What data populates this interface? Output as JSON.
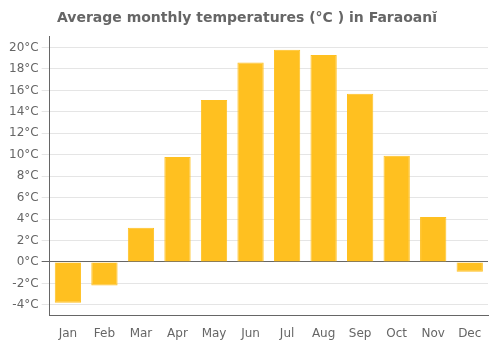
{
  "chart_data": {
    "type": "bar",
    "title": "Average monthly temperatures (°C ) in Faraoanĭ",
    "categories": [
      "Jan",
      "Feb",
      "Mar",
      "Apr",
      "May",
      "Jun",
      "Jul",
      "Aug",
      "Sep",
      "Oct",
      "Nov",
      "Dec"
    ],
    "values": [
      -3.8,
      -2.2,
      3.2,
      9.8,
      15.1,
      18.6,
      19.8,
      19.3,
      15.7,
      9.9,
      4.2,
      -0.9
    ],
    "color": "#FFC020",
    "ylim": [
      -5,
      21
    ],
    "yticks": [
      {
        "value": -4,
        "label": "-4°C"
      },
      {
        "value": -2,
        "label": "-2°C"
      },
      {
        "value": 0,
        "label": "0°C"
      },
      {
        "value": 2,
        "label": "2°C"
      },
      {
        "value": 4,
        "label": "4°C"
      },
      {
        "value": 6,
        "label": "6°C"
      },
      {
        "value": 8,
        "label": "8°C"
      },
      {
        "value": 10,
        "label": "10°C"
      },
      {
        "value": 12,
        "label": "12°C"
      },
      {
        "value": 14,
        "label": "14°C"
      },
      {
        "value": 16,
        "label": "16°C"
      },
      {
        "value": 18,
        "label": "18°C"
      },
      {
        "value": 20,
        "label": "20°C"
      }
    ],
    "grid": true
  }
}
